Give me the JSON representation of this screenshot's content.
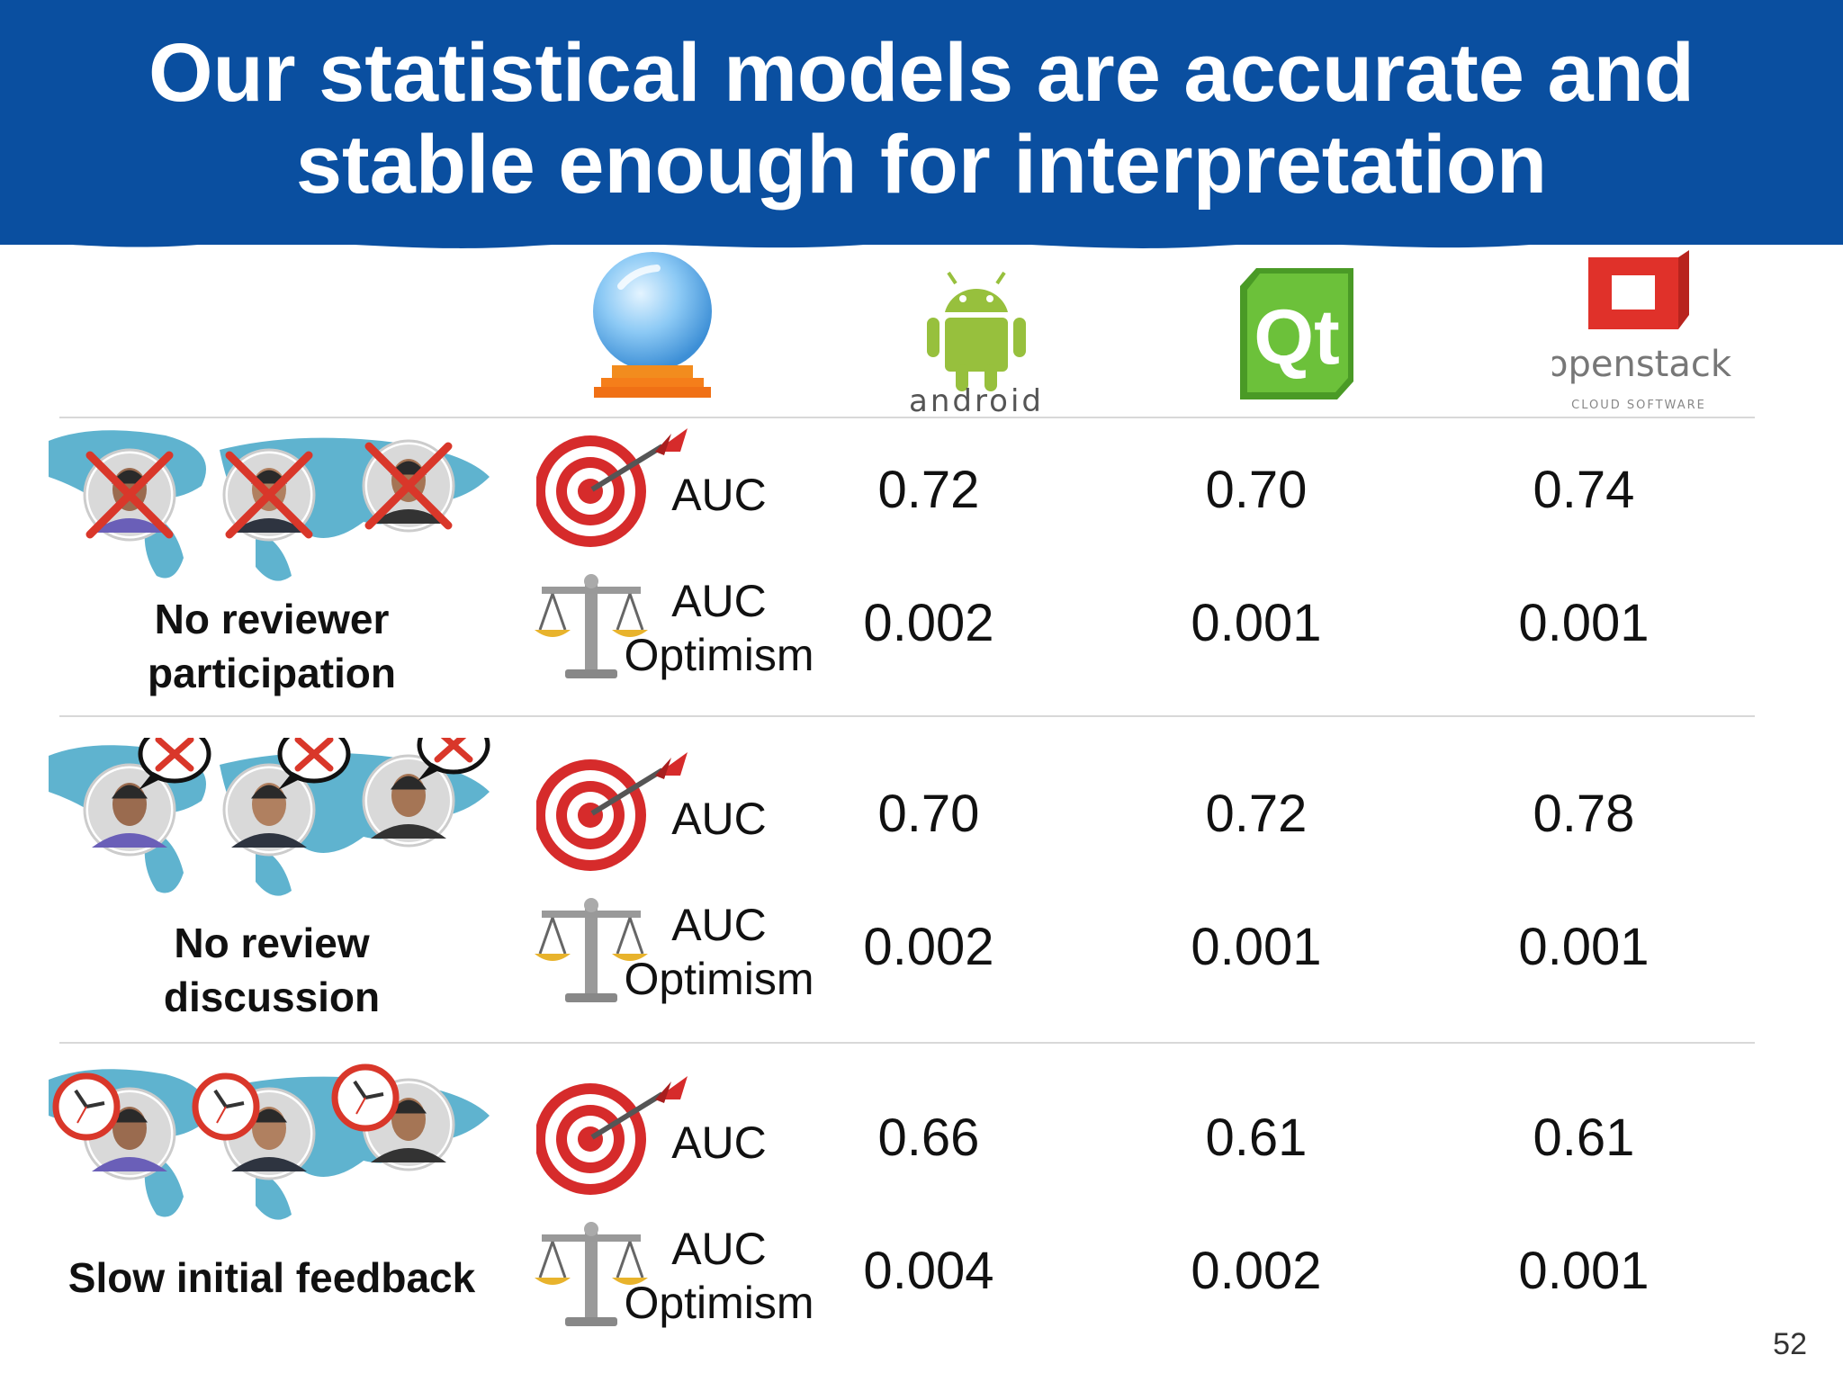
{
  "slide": {
    "title_line1": "Our statistical models are accurate and",
    "title_line2": "stable enough for interpretation",
    "page_number": "52"
  },
  "header": {
    "model_icon": "crystal-ball-icon",
    "projects": [
      {
        "name": "android",
        "icon": "android-logo"
      },
      {
        "name": "Qt",
        "icon": "qt-logo"
      },
      {
        "name": "openstack",
        "subtitle": "CLOUD SOFTWARE",
        "icon": "openstack-logo"
      }
    ]
  },
  "rows": [
    {
      "label_line1": "No reviewer",
      "label_line2": "participation",
      "metrics": [
        {
          "icon": "dartboard-icon",
          "label_line1": "AUC",
          "label_line2": "",
          "values": [
            "0.72",
            "0.70",
            "0.74"
          ]
        },
        {
          "icon": "balance-scale-icon",
          "label_line1": "AUC",
          "label_line2": "Optimism",
          "values": [
            "0.002",
            "0.001",
            "0.001"
          ]
        }
      ]
    },
    {
      "label_line1": "No review",
      "label_line2": "discussion",
      "metrics": [
        {
          "icon": "dartboard-icon",
          "label_line1": "AUC",
          "label_line2": "",
          "values": [
            "0.70",
            "0.72",
            "0.78"
          ]
        },
        {
          "icon": "balance-scale-icon",
          "label_line1": "AUC",
          "label_line2": "Optimism",
          "values": [
            "0.002",
            "0.001",
            "0.001"
          ]
        }
      ]
    },
    {
      "label_line1": "Slow initial feedback",
      "label_line2": "",
      "metrics": [
        {
          "icon": "dartboard-icon",
          "label_line1": "AUC",
          "label_line2": "",
          "values": [
            "0.66",
            "0.61",
            "0.61"
          ]
        },
        {
          "icon": "balance-scale-icon",
          "label_line1": "AUC",
          "label_line2": "Optimism",
          "values": [
            "0.004",
            "0.002",
            "0.001"
          ]
        }
      ]
    }
  ],
  "colors": {
    "banner": "#0a4fa0",
    "android_green": "#97c03d",
    "qt_green": "#5fb832",
    "openstack_red": "#e0312a",
    "map_blue": "#5fb3cf",
    "cross_red": "#d9372a"
  }
}
